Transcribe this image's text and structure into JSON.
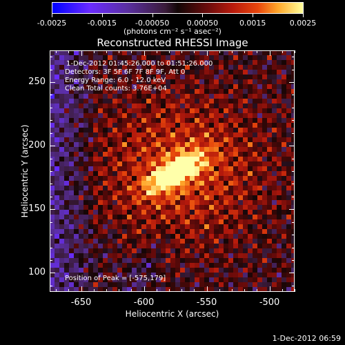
{
  "chart_data": {
    "type": "heatmap",
    "title": "Reconstructed RHESSI Image",
    "xlabel": "Heliocentric X (arcsec)",
    "ylabel": "Heliocentric Y (arcsec)",
    "xlim": [
      -675,
      -480
    ],
    "ylim": [
      85,
      275
    ],
    "xticks": [
      -650,
      -600,
      -550,
      -500
    ],
    "yticks": [
      100,
      150,
      200,
      250
    ],
    "xticklabels": [
      "-650",
      "-600",
      "-550",
      "-500"
    ],
    "yticklabels": [
      "100",
      "150",
      "200",
      "250"
    ],
    "colorbar": {
      "min": -0.0025,
      "max": 0.0025,
      "ticks": [
        -0.0025,
        -0.0015,
        -0.0005,
        0.0005,
        0.0015,
        0.0025
      ],
      "ticklabels": [
        "-0.0025",
        "-0.0015",
        "-0.00050",
        "0.00050",
        "0.0015",
        "0.0025"
      ],
      "unit_label": "(photons cm⁻² s⁻¹ asec⁻²)",
      "colors": [
        "#0000ff",
        "#6a2bff",
        "#5a2fa0",
        "#120606",
        "#b81a0c",
        "#ffa62a",
        "#ffff9a"
      ]
    },
    "peak": {
      "x": -575,
      "y": 179
    },
    "annotations": [
      "1-Dec-2012 01:45:26.000 to 01:51:26.000",
      "Detectors: 3F 5F 6F 7F 8F 9F, Att 0",
      "Energy Range: 6.0 - 12.0 keV",
      "Clean     Total counts: 3.76E+04",
      "Position of Peak = [-575,179]"
    ]
  },
  "footer": {
    "timestamp": "1-Dec-2012 06:59"
  }
}
